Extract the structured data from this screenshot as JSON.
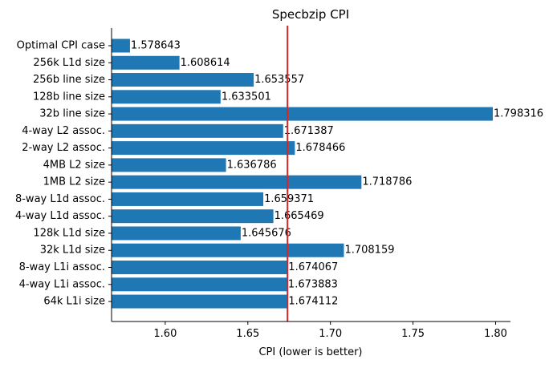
{
  "chart_data": {
    "type": "bar",
    "orientation": "horizontal",
    "title": "Specbzip CPI",
    "xlabel": "CPI (lower is better)",
    "ylabel": "",
    "xlim": [
      1.5675,
      1.809
    ],
    "xticks": [
      "1.60",
      "1.65",
      "1.70",
      "1.75",
      "1.80"
    ],
    "categories": [
      "Optimal CPI case",
      "256k L1d size",
      "256b line size",
      "128b line size",
      "32b line size",
      "4-way L2 assoc.",
      "2-way L2 assoc.",
      "4MB L2 size",
      "1MB L2 size",
      "8-way L1d assoc.",
      "4-way L1d assoc.",
      "128k L1d size",
      "32k L1d size",
      "8-way L1i assoc.",
      "4-way L1i assoc.",
      "64k L1i size"
    ],
    "values": [
      1.578643,
      1.608614,
      1.653557,
      1.633501,
      1.798316,
      1.671387,
      1.678466,
      1.636786,
      1.718786,
      1.659371,
      1.665469,
      1.645676,
      1.708159,
      1.674067,
      1.673883,
      1.674112
    ],
    "value_labels": [
      "1.578643",
      "1.608614",
      "1.653557",
      "1.633501",
      "1.798316",
      "1.671387",
      "1.678466",
      "1.636786",
      "1.718786",
      "1.659371",
      "1.665469",
      "1.645676",
      "1.708159",
      "1.674067",
      "1.673883",
      "1.674112"
    ],
    "reference_line": {
      "x": 1.674,
      "color": "#d62728"
    },
    "bar_color": "#1f77b4",
    "grid": false,
    "legend": "none"
  }
}
